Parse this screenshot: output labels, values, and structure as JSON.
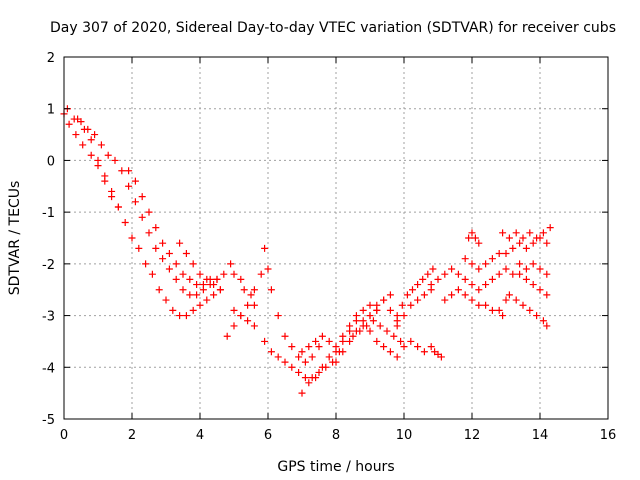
{
  "chart_data": {
    "type": "scatter",
    "title": "Day 307 of 2020, Sidereal Day-to-day VTEC variation (SDTVAR) for receiver cubs",
    "xlabel": "GPS time / hours",
    "ylabel": "SDTVAR / TECUs",
    "xlim": [
      0,
      16
    ],
    "ylim": [
      -5,
      2
    ],
    "x_ticks": [
      "0",
      "2",
      "4",
      "6",
      "8",
      "10",
      "12",
      "14",
      "16"
    ],
    "y_ticks": [
      "-5",
      "-4",
      "-3",
      "-2",
      "-1",
      "0",
      "1",
      "2"
    ],
    "grid": true,
    "marker": "+",
    "marker_color": "#ff0000",
    "series": [
      {
        "x": [
          0.0,
          0.15,
          0.35,
          0.55,
          0.8,
          1.0,
          1.2,
          1.4,
          1.6,
          1.8,
          2.0,
          2.2,
          2.4,
          2.6,
          2.8,
          3.0,
          3.2,
          3.4,
          3.6,
          3.8,
          4.0,
          4.2,
          4.4,
          4.6
        ],
        "y": [
          0.9,
          0.7,
          0.5,
          0.3,
          0.1,
          -0.1,
          -0.3,
          -0.6,
          -0.9,
          -1.2,
          -1.5,
          -1.7,
          -2.0,
          -2.2,
          -2.5,
          -2.7,
          -2.9,
          -3.0,
          -3.0,
          -2.9,
          -2.8,
          -2.7,
          -2.6,
          -2.5
        ]
      },
      {
        "x": [
          0.1,
          0.3,
          0.5,
          0.7,
          0.9,
          1.1,
          1.3,
          1.5,
          1.7,
          1.9,
          2.1,
          2.3,
          2.5,
          2.7,
          2.9,
          3.1,
          3.3,
          3.5,
          3.7,
          3.9,
          4.1,
          4.3,
          4.5
        ],
        "y": [
          1.0,
          0.8,
          0.75,
          0.6,
          0.5,
          0.3,
          0.1,
          0.0,
          -0.2,
          -0.5,
          -0.8,
          -1.1,
          -1.4,
          -1.7,
          -1.9,
          -2.1,
          -2.3,
          -2.5,
          -2.6,
          -2.6,
          -2.5,
          -2.4,
          -2.3
        ]
      },
      {
        "x": [
          0.4,
          0.6,
          0.8,
          1.0,
          1.2,
          1.4,
          1.6
        ],
        "y": [
          0.8,
          0.6,
          0.4,
          0.0,
          -0.4,
          -0.7,
          -0.9
        ]
      },
      {
        "x": [
          1.9,
          2.1,
          2.3,
          2.5,
          2.7,
          2.9,
          3.1,
          3.3,
          3.5,
          3.7,
          3.9,
          4.1,
          4.3,
          4.5,
          4.7
        ],
        "y": [
          -0.2,
          -0.4,
          -0.7,
          -1.0,
          -1.3,
          -1.6,
          -1.8,
          -2.0,
          -2.2,
          -2.3,
          -2.4,
          -2.4,
          -2.3,
          -2.3,
          -2.2
        ]
      },
      {
        "x": [
          3.4,
          3.6,
          3.8,
          4.0,
          4.2,
          4.4,
          4.6
        ],
        "y": [
          -1.6,
          -1.8,
          -2.0,
          -2.2,
          -2.3,
          -2.4,
          -2.5
        ]
      },
      {
        "x": [
          4.9,
          5.0,
          5.2,
          5.3,
          5.5,
          5.6
        ],
        "y": [
          -2.0,
          -2.2,
          -2.3,
          -2.5,
          -2.6,
          -2.8
        ]
      },
      {
        "x": [
          4.8,
          5.0,
          5.2,
          5.4,
          5.6,
          5.8
        ],
        "y": [
          -3.4,
          -3.2,
          -3.0,
          -2.8,
          -2.5,
          -2.2
        ]
      },
      {
        "x": [
          5.0,
          5.2,
          5.4,
          5.6
        ],
        "y": [
          -2.9,
          -3.0,
          -3.1,
          -3.2
        ]
      },
      {
        "x": [
          5.9,
          6.0,
          6.1,
          6.3,
          6.5,
          6.7,
          6.9,
          7.1,
          7.3,
          7.5
        ],
        "y": [
          -1.7,
          -2.1,
          -2.5,
          -3.0,
          -3.4,
          -3.6,
          -3.8,
          -3.9,
          -3.8,
          -3.6
        ]
      },
      {
        "x": [
          5.9,
          6.1,
          6.3,
          6.5,
          6.7,
          6.9,
          7.1,
          7.3,
          7.5,
          7.7,
          7.9,
          8.1
        ],
        "y": [
          -3.5,
          -3.7,
          -3.8,
          -3.9,
          -4.0,
          -4.1,
          -4.2,
          -4.2,
          -4.1,
          -4.0,
          -3.9,
          -3.7
        ]
      },
      {
        "x": [
          7.0,
          7.2,
          7.4,
          7.6,
          7.8,
          8.0,
          8.2,
          8.4,
          8.6,
          8.8,
          9.0,
          9.2
        ],
        "y": [
          -4.5,
          -4.3,
          -4.2,
          -4.0,
          -3.8,
          -3.7,
          -3.5,
          -3.3,
          -3.1,
          -2.9,
          -2.8,
          -2.9
        ]
      },
      {
        "x": [
          7.0,
          7.2,
          7.4,
          7.6,
          7.8,
          8.0,
          8.2,
          8.4,
          8.6,
          8.8,
          9.0,
          9.2,
          9.4,
          9.6
        ],
        "y": [
          -3.7,
          -3.6,
          -3.5,
          -3.4,
          -3.5,
          -3.6,
          -3.4,
          -3.2,
          -3.0,
          -3.1,
          -3.3,
          -3.5,
          -3.6,
          -3.7
        ]
      },
      {
        "x": [
          8.0,
          8.2,
          8.4,
          8.6,
          8.8,
          9.0,
          9.2,
          9.4,
          9.6,
          9.8
        ],
        "y": [
          -3.9,
          -3.7,
          -3.5,
          -3.3,
          -3.2,
          -3.0,
          -2.8,
          -2.7,
          -2.9,
          -3.1
        ]
      },
      {
        "x": [
          8.5,
          8.7,
          8.9,
          9.1,
          9.3,
          9.5,
          9.7,
          9.9
        ],
        "y": [
          -3.4,
          -3.3,
          -3.2,
          -3.1,
          -3.2,
          -3.3,
          -3.4,
          -3.5
        ]
      },
      {
        "x": [
          9.0,
          9.2,
          9.4,
          9.6
        ],
        "y": [
          -3.0,
          -2.9,
          -2.7,
          -2.6
        ]
      },
      {
        "x": [
          9.8,
          10.0,
          10.2,
          10.4,
          10.6,
          10.8
        ],
        "y": [
          -3.8,
          -3.6,
          -3.5,
          -3.6,
          -3.7,
          -3.6
        ]
      },
      {
        "x": [
          9.8,
          10.0,
          10.2,
          10.4,
          10.6,
          10.8
        ],
        "y": [
          -3.2,
          -3.0,
          -2.8,
          -2.7,
          -2.6,
          -2.5
        ]
      },
      {
        "x": [
          9.8,
          9.95,
          10.1,
          10.25,
          10.4,
          10.55,
          10.7,
          10.85
        ],
        "y": [
          -3.0,
          -2.8,
          -2.6,
          -2.5,
          -2.4,
          -2.3,
          -2.2,
          -2.1
        ]
      },
      {
        "x": [
          10.9,
          11.0,
          11.1
        ],
        "y": [
          -3.7,
          -3.75,
          -3.8
        ]
      },
      {
        "x": [
          10.8,
          11.0,
          11.2,
          11.4,
          11.6,
          11.8,
          12.0,
          12.2,
          12.4,
          12.6,
          12.8
        ],
        "y": [
          -2.4,
          -2.3,
          -2.2,
          -2.1,
          -2.2,
          -2.3,
          -2.4,
          -2.5,
          -2.4,
          -2.3,
          -2.2
        ]
      },
      {
        "x": [
          11.2,
          11.4,
          11.6,
          11.8,
          12.0,
          12.2,
          12.4,
          12.6,
          12.8
        ],
        "y": [
          -2.7,
          -2.6,
          -2.5,
          -2.6,
          -2.7,
          -2.8,
          -2.8,
          -2.9,
          -2.9
        ]
      },
      {
        "x": [
          11.8,
          12.0,
          12.2,
          12.4,
          12.6,
          12.8
        ],
        "y": [
          -1.9,
          -2.0,
          -2.1,
          -2.0,
          -1.9,
          -1.8
        ]
      },
      {
        "x": [
          11.9,
          12.0,
          12.1,
          12.2
        ],
        "y": [
          -1.5,
          -1.4,
          -1.5,
          -1.6
        ]
      },
      {
        "x": [
          12.9,
          13.1,
          13.3,
          13.5,
          13.7,
          13.9,
          14.1,
          14.3
        ],
        "y": [
          -1.4,
          -1.5,
          -1.4,
          -1.5,
          -1.4,
          -1.5,
          -1.4,
          -1.3
        ]
      },
      {
        "x": [
          13.0,
          13.2,
          13.4,
          13.6,
          13.8,
          14.0,
          14.2
        ],
        "y": [
          -1.8,
          -1.7,
          -1.6,
          -1.7,
          -1.6,
          -1.5,
          -1.6
        ]
      },
      {
        "x": [
          13.0,
          13.2,
          13.4,
          13.6,
          13.8,
          14.0,
          14.2
        ],
        "y": [
          -2.1,
          -2.2,
          -2.0,
          -2.1,
          -2.0,
          -2.1,
          -2.2
        ]
      },
      {
        "x": [
          13.4,
          13.6,
          13.8,
          14.0,
          14.2
        ],
        "y": [
          -2.2,
          -2.3,
          -2.4,
          -2.5,
          -2.6
        ]
      },
      {
        "x": [
          12.9,
          13.0,
          13.1,
          13.3,
          13.5,
          13.7,
          13.9,
          14.1,
          14.2
        ],
        "y": [
          -3.0,
          -2.7,
          -2.6,
          -2.7,
          -2.8,
          -2.9,
          -3.0,
          -3.1,
          -3.2
        ]
      }
    ]
  }
}
